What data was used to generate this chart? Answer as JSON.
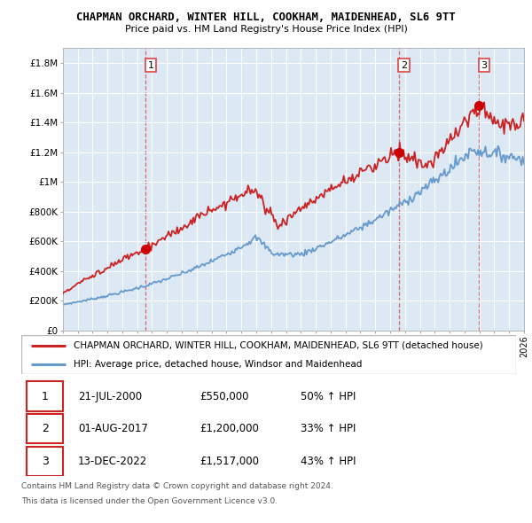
{
  "title": "CHAPMAN ORCHARD, WINTER HILL, COOKHAM, MAIDENHEAD, SL6 9TT",
  "subtitle": "Price paid vs. HM Land Registry's House Price Index (HPI)",
  "background_color": "#ffffff",
  "plot_bg_color": "#dce9f5",
  "grid_color": "#ffffff",
  "red_line_color": "#cc2222",
  "blue_line_color": "#6699cc",
  "sale_marker_color": "#cc0000",
  "dashed_line_color": "#dd4444",
  "ylim_max": 1900000,
  "yticks": [
    0,
    200000,
    400000,
    600000,
    800000,
    1000000,
    1200000,
    1400000,
    1600000,
    1800000
  ],
  "ytick_labels": [
    "£0",
    "£200K",
    "£400K",
    "£600K",
    "£800K",
    "£1M",
    "£1.2M",
    "£1.4M",
    "£1.6M",
    "£1.8M"
  ],
  "sales": [
    {
      "date_num": 5.55,
      "price": 550000,
      "label": "1"
    },
    {
      "date_num": 22.58,
      "price": 1200000,
      "label": "2"
    },
    {
      "date_num": 27.95,
      "price": 1517000,
      "label": "3"
    }
  ],
  "vlines": [
    5.55,
    22.58,
    27.95
  ],
  "legend_entry1": "CHAPMAN ORCHARD, WINTER HILL, COOKHAM, MAIDENHEAD, SL6 9TT (detached house)",
  "legend_entry2": "HPI: Average price, detached house, Windsor and Maidenhead",
  "table_rows": [
    {
      "num": "1",
      "date": "21-JUL-2000",
      "price": "£550,000",
      "change": "50% ↑ HPI"
    },
    {
      "num": "2",
      "date": "01-AUG-2017",
      "price": "£1,200,000",
      "change": "33% ↑ HPI"
    },
    {
      "num": "3",
      "date": "13-DEC-2022",
      "price": "£1,517,000",
      "change": "43% ↑ HPI"
    }
  ],
  "footnote1": "Contains HM Land Registry data © Crown copyright and database right 2024.",
  "footnote2": "This data is licensed under the Open Government Licence v3.0.",
  "xmin": 0,
  "xmax": 31
}
